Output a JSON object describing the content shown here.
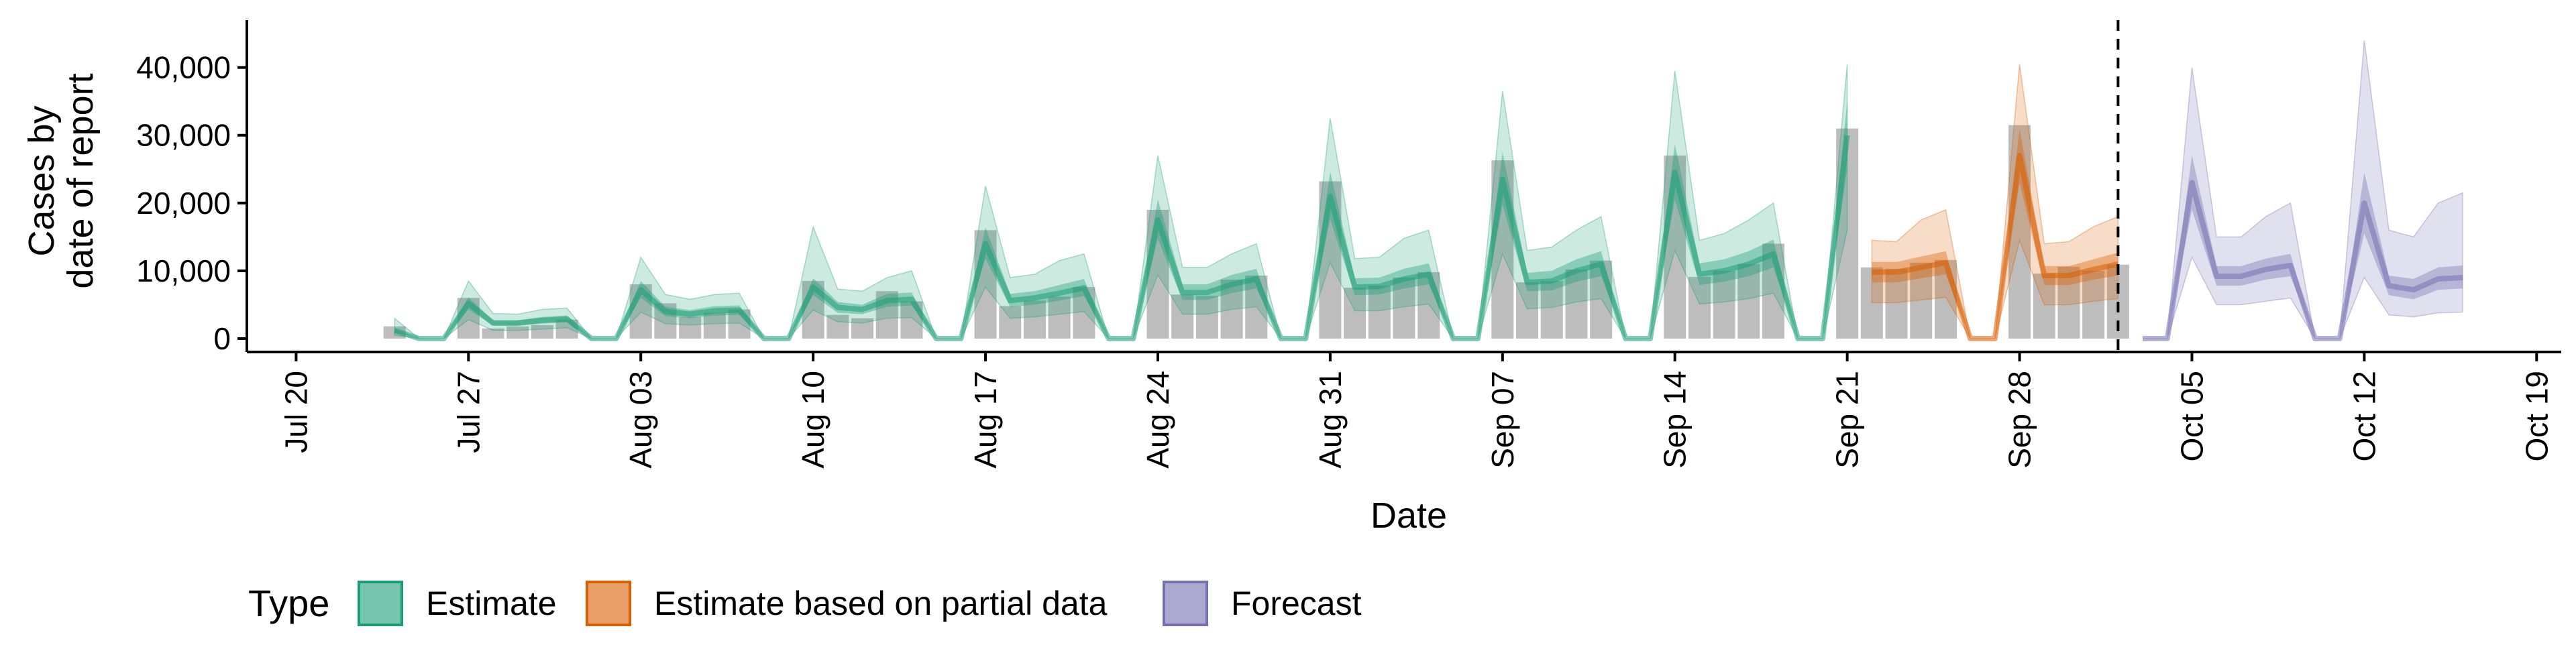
{
  "chart_data": {
    "type": "bar",
    "title": "",
    "xlabel": "Date",
    "ylabel_lines": [
      "Cases by",
      "date of report"
    ],
    "ylim": [
      0,
      46000
    ],
    "y_ticks": [
      0,
      10000,
      20000,
      30000,
      40000
    ],
    "y_tick_labels": [
      "0",
      "10,000",
      "20,000",
      "30,000",
      "40,000"
    ],
    "x_ticks": [
      "2020-07-20",
      "2020-07-27",
      "2020-08-03",
      "2020-08-10",
      "2020-08-17",
      "2020-08-24",
      "2020-08-31",
      "2020-09-07",
      "2020-09-14",
      "2020-09-21",
      "2020-09-28",
      "2020-10-05",
      "2020-10-12",
      "2020-10-19"
    ],
    "x_tick_labels": [
      "Jul 20",
      "Jul 27",
      "Aug 03",
      "Aug 10",
      "Aug 17",
      "Aug 24",
      "Aug 31",
      "Sep 07",
      "Sep 14",
      "Sep 21",
      "Sep 28",
      "Oct 05",
      "Oct 12",
      "Oct 19"
    ],
    "xlim": [
      "2020-07-18",
      "2020-10-20"
    ],
    "forecast_start_marker": "2020-10-02",
    "legend": {
      "title": "Type",
      "position": "bottom-left",
      "items": [
        {
          "label": "Estimate",
          "color": "#1B9E77"
        },
        {
          "label": "Estimate based on partial data",
          "color": "#D95F02"
        },
        {
          "label": "Forecast",
          "color": "#7570B3"
        }
      ]
    },
    "bar_color": "#BDBDBD",
    "reported_cases": {
      "dates": [
        "2020-07-24",
        "2020-07-25",
        "2020-07-26",
        "2020-07-27",
        "2020-07-28",
        "2020-07-29",
        "2020-07-30",
        "2020-07-31",
        "2020-08-01",
        "2020-08-02",
        "2020-08-03",
        "2020-08-04",
        "2020-08-05",
        "2020-08-06",
        "2020-08-07",
        "2020-08-08",
        "2020-08-09",
        "2020-08-10",
        "2020-08-11",
        "2020-08-12",
        "2020-08-13",
        "2020-08-14",
        "2020-08-15",
        "2020-08-16",
        "2020-08-17",
        "2020-08-18",
        "2020-08-19",
        "2020-08-20",
        "2020-08-21",
        "2020-08-22",
        "2020-08-23",
        "2020-08-24",
        "2020-08-25",
        "2020-08-26",
        "2020-08-27",
        "2020-08-28",
        "2020-08-29",
        "2020-08-30",
        "2020-08-31",
        "2020-09-01",
        "2020-09-02",
        "2020-09-03",
        "2020-09-04",
        "2020-09-05",
        "2020-09-06",
        "2020-09-07",
        "2020-09-08",
        "2020-09-09",
        "2020-09-10",
        "2020-09-11",
        "2020-09-12",
        "2020-09-13",
        "2020-09-14",
        "2020-09-15",
        "2020-09-16",
        "2020-09-17",
        "2020-09-18",
        "2020-09-19",
        "2020-09-20",
        "2020-09-21",
        "2020-09-22",
        "2020-09-23",
        "2020-09-24",
        "2020-09-25",
        "2020-09-26",
        "2020-09-27",
        "2020-09-28",
        "2020-09-29",
        "2020-09-30",
        "2020-10-01",
        "2020-10-02"
      ],
      "values": [
        1800,
        0,
        0,
        6000,
        1500,
        1800,
        2000,
        2800,
        0,
        0,
        8000,
        5200,
        3200,
        3800,
        4300,
        0,
        0,
        8500,
        3500,
        3000,
        7000,
        5500,
        0,
        0,
        16000,
        4800,
        5600,
        6200,
        7600,
        0,
        0,
        19000,
        6500,
        6300,
        8700,
        9300,
        0,
        0,
        23200,
        7500,
        7800,
        9000,
        9800,
        0,
        0,
        26300,
        8300,
        8500,
        10200,
        11500,
        0,
        0,
        27000,
        9100,
        10000,
        11000,
        14000,
        0,
        0,
        31000,
        10500,
        10300,
        11200,
        11600,
        0,
        0,
        31500,
        9600,
        10600,
        10000,
        10900
      ]
    },
    "series": [
      {
        "name": "Estimate",
        "dates": [
          "2020-07-24",
          "2020-07-25",
          "2020-07-26",
          "2020-07-27",
          "2020-07-28",
          "2020-07-29",
          "2020-07-30",
          "2020-07-31",
          "2020-08-01",
          "2020-08-02",
          "2020-08-03",
          "2020-08-04",
          "2020-08-05",
          "2020-08-06",
          "2020-08-07",
          "2020-08-08",
          "2020-08-09",
          "2020-08-10",
          "2020-08-11",
          "2020-08-12",
          "2020-08-13",
          "2020-08-14",
          "2020-08-15",
          "2020-08-16",
          "2020-08-17",
          "2020-08-18",
          "2020-08-19",
          "2020-08-20",
          "2020-08-21",
          "2020-08-22",
          "2020-08-23",
          "2020-08-24",
          "2020-08-25",
          "2020-08-26",
          "2020-08-27",
          "2020-08-28",
          "2020-08-29",
          "2020-08-30",
          "2020-08-31",
          "2020-09-01",
          "2020-09-02",
          "2020-09-03",
          "2020-09-04",
          "2020-09-05",
          "2020-09-06",
          "2020-09-07",
          "2020-09-08",
          "2020-09-09",
          "2020-09-10",
          "2020-09-11",
          "2020-09-12",
          "2020-09-13",
          "2020-09-14",
          "2020-09-15",
          "2020-09-16",
          "2020-09-17",
          "2020-09-18",
          "2020-09-19",
          "2020-09-20",
          "2020-09-21"
        ],
        "median": [
          1200,
          0,
          0,
          5200,
          2300,
          2300,
          2700,
          2900,
          0,
          0,
          7200,
          4000,
          3600,
          4100,
          4200,
          0,
          0,
          7600,
          4600,
          4300,
          5600,
          5800,
          0,
          0,
          14000,
          5600,
          6000,
          6700,
          7500,
          0,
          0,
          17500,
          6800,
          6800,
          8000,
          8800,
          0,
          0,
          21000,
          7600,
          7700,
          8800,
          9500,
          0,
          0,
          23500,
          8300,
          8500,
          10000,
          11000,
          0,
          0,
          24500,
          9500,
          10000,
          11000,
          12500,
          0,
          0,
          30000
        ],
        "q25": [
          900,
          0,
          0,
          4300,
          1900,
          1900,
          2200,
          2400,
          0,
          0,
          6000,
          3300,
          3000,
          3400,
          3500,
          0,
          0,
          6400,
          3800,
          3600,
          4700,
          4900,
          0,
          0,
          11800,
          4700,
          5000,
          5600,
          6300,
          0,
          0,
          14700,
          5700,
          5700,
          6700,
          7400,
          0,
          0,
          17600,
          6400,
          6500,
          7400,
          8000,
          0,
          0,
          19700,
          7000,
          7100,
          8400,
          9200,
          0,
          0,
          20500,
          7900,
          8400,
          9200,
          10500,
          0,
          0,
          25000
        ],
        "q75": [
          1500,
          0,
          0,
          6100,
          2700,
          2700,
          3200,
          3400,
          0,
          0,
          8500,
          4700,
          4200,
          4800,
          4900,
          0,
          0,
          8900,
          5400,
          5000,
          6600,
          6800,
          0,
          0,
          16400,
          6600,
          7000,
          7900,
          8800,
          0,
          0,
          20500,
          8000,
          8000,
          9400,
          10300,
          0,
          0,
          24600,
          8900,
          9000,
          10300,
          11100,
          0,
          0,
          27500,
          9700,
          10000,
          11700,
          12900,
          0,
          0,
          28700,
          11100,
          11700,
          12900,
          14600,
          0,
          0,
          35000
        ],
        "lo": [
          500,
          0,
          0,
          2800,
          1200,
          1200,
          1400,
          1600,
          0,
          0,
          3900,
          2200,
          2000,
          2200,
          2300,
          0,
          0,
          4200,
          2500,
          2300,
          3000,
          3100,
          0,
          0,
          7600,
          3000,
          3200,
          3600,
          4000,
          0,
          0,
          9400,
          3600,
          3600,
          4300,
          4700,
          0,
          0,
          11200,
          4100,
          4100,
          4700,
          5100,
          0,
          0,
          12500,
          4400,
          4600,
          5400,
          5900,
          0,
          0,
          13000,
          5100,
          5400,
          5900,
          6700,
          0,
          0,
          16000
        ],
        "hi": [
          3000,
          0,
          0,
          8500,
          3700,
          3600,
          4300,
          4500,
          0,
          0,
          12000,
          6500,
          5800,
          6500,
          6700,
          0,
          0,
          16500,
          7300,
          7000,
          9000,
          10000,
          0,
          0,
          22500,
          9000,
          9500,
          11500,
          12500,
          0,
          0,
          27000,
          10500,
          10500,
          12500,
          14000,
          0,
          0,
          32500,
          11800,
          12000,
          14800,
          16000,
          0,
          0,
          36500,
          13000,
          13500,
          16000,
          18000,
          0,
          0,
          39500,
          14500,
          15500,
          17500,
          20000,
          0,
          0,
          40500
        ]
      },
      {
        "name": "Estimate based on partial data",
        "dates": [
          "2020-09-22",
          "2020-09-23",
          "2020-09-24",
          "2020-09-25",
          "2020-09-26",
          "2020-09-27",
          "2020-09-28",
          "2020-09-29",
          "2020-09-30",
          "2020-10-01",
          "2020-10-02"
        ],
        "median": [
          9800,
          9800,
          10500,
          11200,
          0,
          0,
          27000,
          9300,
          9300,
          10200,
          11000
        ],
        "q25": [
          8300,
          8300,
          8900,
          9500,
          0,
          0,
          23000,
          7900,
          7900,
          8700,
          9300
        ],
        "q75": [
          11300,
          11300,
          12100,
          12900,
          0,
          0,
          31000,
          10700,
          10700,
          11700,
          12700
        ],
        "lo": [
          5300,
          5300,
          5700,
          6100,
          0,
          0,
          14500,
          5000,
          5000,
          5500,
          5900
        ],
        "hi": [
          14500,
          14300,
          17500,
          19000,
          0,
          0,
          40500,
          14000,
          14300,
          16500,
          18000
        ]
      },
      {
        "name": "Forecast",
        "dates": [
          "2020-10-03",
          "2020-10-04",
          "2020-10-05",
          "2020-10-06",
          "2020-10-07",
          "2020-10-08",
          "2020-10-09",
          "2020-10-10",
          "2020-10-11",
          "2020-10-12",
          "2020-10-13",
          "2020-10-14",
          "2020-10-15",
          "2020-10-16"
        ],
        "median": [
          0,
          0,
          23000,
          9200,
          9200,
          10200,
          10800,
          0,
          0,
          20000,
          7800,
          7200,
          8800,
          9000
        ],
        "q25": [
          0,
          0,
          19000,
          7800,
          7800,
          8700,
          9200,
          0,
          0,
          15500,
          6400,
          5800,
          7200,
          7400
        ],
        "q75": [
          0,
          0,
          27000,
          10700,
          10700,
          11800,
          12500,
          0,
          0,
          24500,
          9300,
          8800,
          10500,
          10800
        ],
        "lo": [
          0,
          0,
          12000,
          5000,
          5000,
          5500,
          6000,
          0,
          0,
          9000,
          3500,
          3200,
          3800,
          3900
        ],
        "hi": [
          0,
          0,
          40000,
          15000,
          15000,
          18000,
          20000,
          0,
          0,
          44000,
          16000,
          15000,
          20000,
          21500
        ]
      }
    ]
  }
}
